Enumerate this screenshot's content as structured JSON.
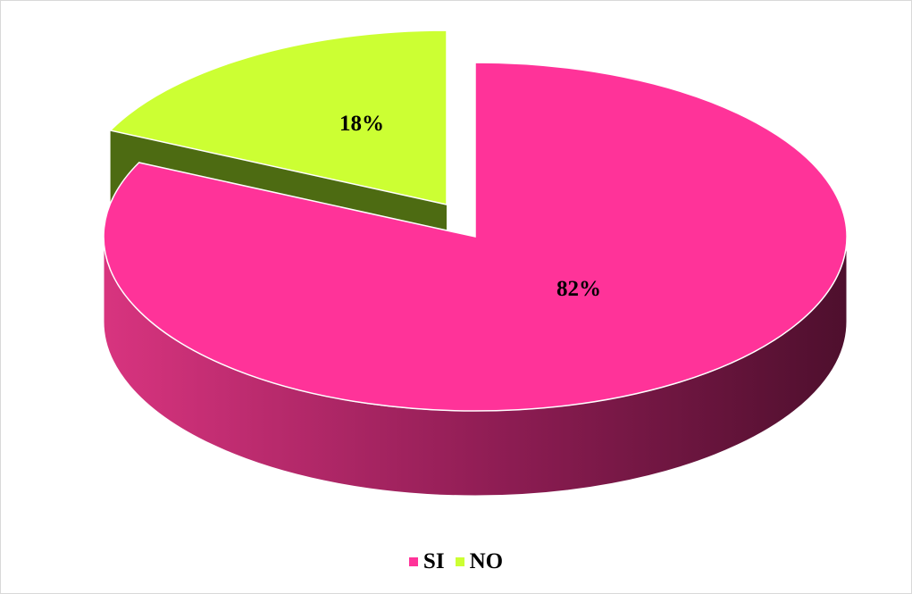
{
  "chart_data": {
    "type": "pie",
    "style": "3d-exploded",
    "categories": [
      "SI",
      "NO"
    ],
    "values": [
      82,
      18
    ],
    "data_labels": [
      "82%",
      "18%"
    ],
    "colors": {
      "SI": "#ff3399",
      "SI_side_light": "#cc2d7c",
      "SI_side_dark": "#5a1032",
      "NO": "#ccff33",
      "NO_side": "#4d6b12"
    },
    "legend": {
      "position": "bottom",
      "entries": [
        {
          "label": "SI",
          "color": "#ff3399"
        },
        {
          "label": "NO",
          "color": "#ccff33"
        }
      ]
    }
  }
}
